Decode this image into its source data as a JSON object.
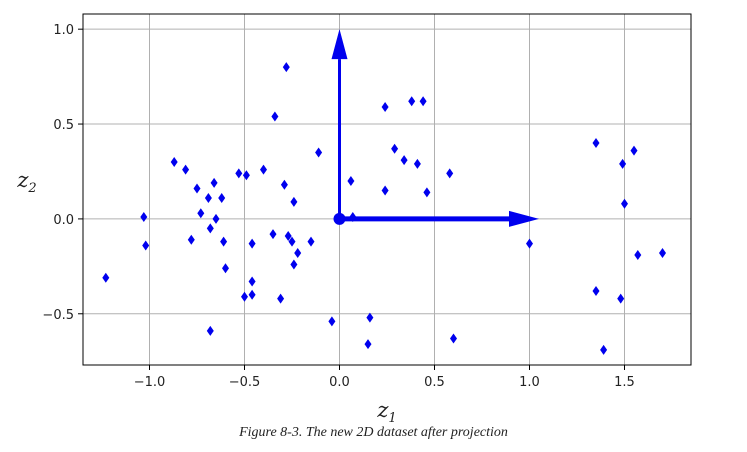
{
  "chart_data": {
    "type": "scatter",
    "xlabel": {
      "base": "z",
      "sub": "1"
    },
    "ylabel": {
      "base": "z",
      "sub": "2"
    },
    "xlim": [
      -1.35,
      1.85
    ],
    "ylim": [
      -0.77,
      1.08
    ],
    "xticks": [
      -1.0,
      -0.5,
      0.0,
      0.5,
      1.0,
      1.5
    ],
    "yticks": [
      -0.5,
      0.0,
      0.5,
      1.0
    ],
    "xtick_labels": [
      "−1.0",
      "−0.5",
      "0.0",
      "0.5",
      "1.0",
      "1.5"
    ],
    "ytick_labels": [
      "−0.5",
      "0.0",
      "0.5",
      "1.0"
    ],
    "grid": true,
    "marker_color": "#0000ee",
    "arrow_color": "#0000ee",
    "origin": [
      0,
      0
    ],
    "arrows": [
      {
        "dx": 1.05,
        "dy": 0.0
      },
      {
        "dx": 0.0,
        "dy": 1.0
      }
    ],
    "points": [
      [
        -1.23,
        -0.31
      ],
      [
        -1.03,
        0.01
      ],
      [
        -1.02,
        -0.14
      ],
      [
        -0.87,
        0.3
      ],
      [
        -0.81,
        0.26
      ],
      [
        -0.78,
        -0.11
      ],
      [
        -0.75,
        0.16
      ],
      [
        -0.73,
        0.03
      ],
      [
        -0.69,
        0.11
      ],
      [
        -0.68,
        -0.05
      ],
      [
        -0.66,
        0.19
      ],
      [
        -0.65,
        0.0
      ],
      [
        -0.62,
        0.11
      ],
      [
        -0.61,
        -0.12
      ],
      [
        -0.6,
        -0.26
      ],
      [
        -0.53,
        0.24
      ],
      [
        -0.5,
        -0.41
      ],
      [
        -0.49,
        0.23
      ],
      [
        -0.46,
        -0.4
      ],
      [
        -0.46,
        -0.33
      ],
      [
        -0.46,
        -0.13
      ],
      [
        -0.4,
        0.26
      ],
      [
        -0.35,
        -0.08
      ],
      [
        -0.34,
        0.54
      ],
      [
        -0.31,
        -0.42
      ],
      [
        -0.29,
        0.18
      ],
      [
        -0.28,
        0.8
      ],
      [
        -0.27,
        -0.09
      ],
      [
        -0.25,
        -0.12
      ],
      [
        -0.24,
        0.09
      ],
      [
        -0.24,
        -0.24
      ],
      [
        -0.22,
        -0.18
      ],
      [
        -0.15,
        -0.12
      ],
      [
        -0.11,
        0.35
      ],
      [
        -0.68,
        -0.59
      ],
      [
        0.06,
        0.2
      ],
      [
        0.07,
        0.01
      ],
      [
        0.16,
        -0.52
      ],
      [
        0.15,
        -0.66
      ],
      [
        0.24,
        0.59
      ],
      [
        0.24,
        0.15
      ],
      [
        0.29,
        0.37
      ],
      [
        0.34,
        0.31
      ],
      [
        0.38,
        0.62
      ],
      [
        0.41,
        0.29
      ],
      [
        0.44,
        0.62
      ],
      [
        0.46,
        0.14
      ],
      [
        0.58,
        0.24
      ],
      [
        0.6,
        -0.63
      ],
      [
        -0.04,
        -0.54
      ],
      [
        1.0,
        -0.13
      ],
      [
        1.35,
        0.4
      ],
      [
        1.35,
        -0.38
      ],
      [
        1.39,
        -0.69
      ],
      [
        1.48,
        -0.42
      ],
      [
        1.49,
        0.29
      ],
      [
        1.5,
        0.08
      ],
      [
        1.55,
        0.36
      ],
      [
        1.57,
        -0.19
      ],
      [
        1.7,
        -0.18
      ]
    ]
  },
  "caption": "Figure 8-3. The new 2D dataset after projection"
}
